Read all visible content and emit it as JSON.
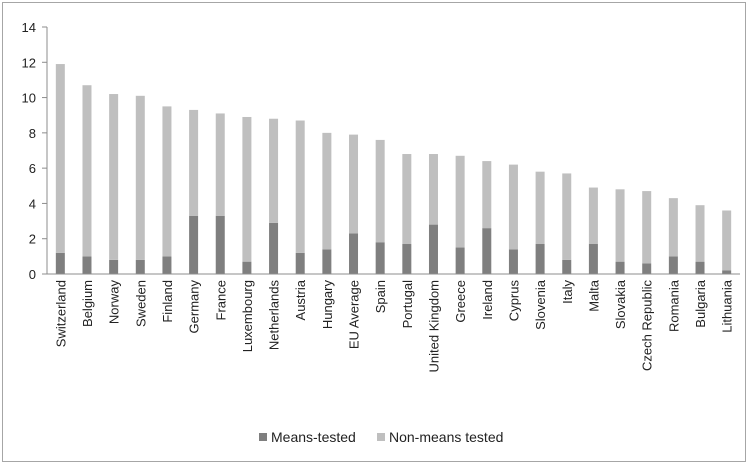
{
  "chart_data": {
    "type": "bar",
    "stacked": true,
    "categories": [
      "Switzerland",
      "Belgium",
      "Norway",
      "Sweden",
      "Finland",
      "Germany",
      "France",
      "Luxembourg",
      "Netherlands",
      "Austria",
      "Hungary",
      "EU Average",
      "Spain",
      "Portugal",
      "United Kingdom",
      "Greece",
      "Ireland",
      "Cyprus",
      "Slovenia",
      "Italy",
      "Malta",
      "Slovakia",
      "Czech Republic",
      "Romania",
      "Bulgaria",
      "Lithuania"
    ],
    "series": [
      {
        "name": "Means-tested",
        "color": "#7f7f7f",
        "values": [
          1.2,
          1.0,
          0.8,
          0.8,
          1.0,
          3.3,
          3.3,
          0.7,
          2.9,
          1.2,
          1.4,
          2.3,
          1.8,
          1.7,
          2.8,
          1.5,
          2.6,
          1.4,
          1.7,
          0.8,
          1.7,
          0.7,
          0.6,
          1.0,
          0.7,
          0.2
        ]
      },
      {
        "name": "Non-means tested",
        "color": "#bfbfbf",
        "values": [
          10.7,
          9.7,
          9.4,
          9.3,
          8.5,
          6.0,
          5.8,
          8.2,
          5.9,
          7.5,
          6.6,
          5.6,
          5.8,
          5.1,
          4.0,
          5.2,
          3.8,
          4.8,
          4.1,
          4.9,
          3.2,
          4.1,
          4.1,
          3.3,
          3.2,
          3.4
        ]
      }
    ],
    "title": "",
    "xlabel": "",
    "ylabel": "",
    "ylim": [
      0,
      14
    ],
    "yticks": [
      0,
      2,
      4,
      6,
      8,
      10,
      12,
      14
    ],
    "grid": false,
    "legend": "bottom"
  }
}
